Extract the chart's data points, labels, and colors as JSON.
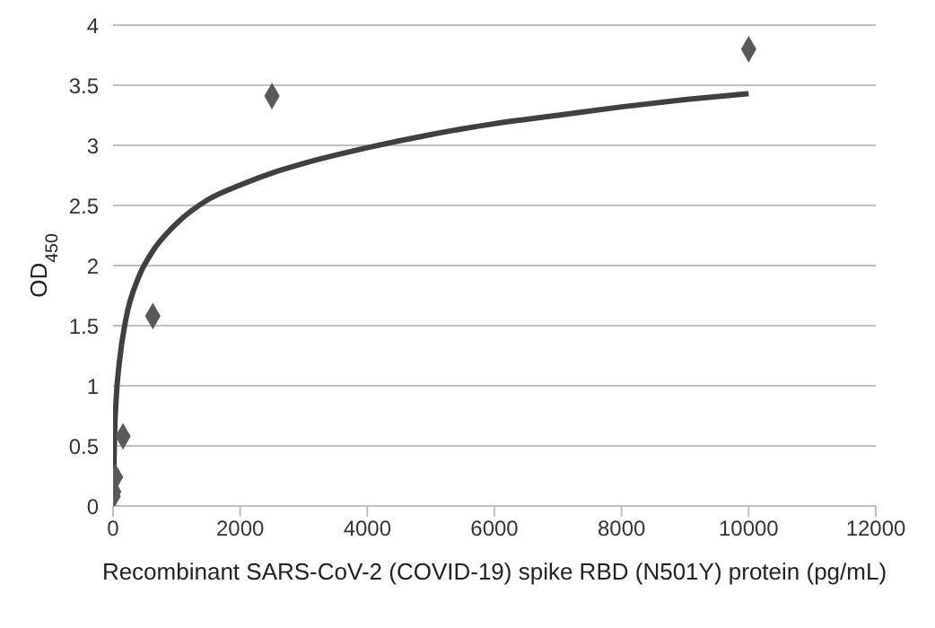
{
  "chart_data": {
    "type": "scatter",
    "xlabel": "Recombinant SARS-CoV-2 (COVID-19) spike RBD (N501Y) protein (pg/mL)",
    "ylabel": "OD$_{450}$",
    "series": [
      {
        "color": "#595959",
        "marker": "diamond",
        "x": [
          0,
          10,
          39,
          156,
          625,
          2500,
          10000
        ],
        "values": [
          0.08,
          0.12,
          0.24,
          0.58,
          1.58,
          3.41,
          3.8
        ]
      },
      {
        "type": "line",
        "color": "#404040",
        "marker": "none",
        "x": [
          5,
          20,
          50,
          100,
          200,
          400,
          600,
          1000,
          1500,
          2000,
          2500,
          3000,
          4000,
          5000,
          6000,
          7000,
          8000,
          9000,
          10000
        ],
        "values": [
          0,
          0.5,
          0.9,
          1.2,
          1.55,
          1.9,
          2.1,
          2.35,
          2.55,
          2.67,
          2.77,
          2.85,
          2.98,
          3.09,
          3.18,
          3.25,
          3.32,
          3.38,
          3.43
        ]
      }
    ],
    "xlim": [
      0,
      12000
    ],
    "xticks": [
      0,
      2000,
      4000,
      6000,
      8000,
      10000,
      12000
    ],
    "ylim": [
      0,
      4
    ],
    "yticks": [
      0,
      0.5,
      1,
      1.5,
      2,
      2.5,
      3,
      3.5,
      4
    ],
    "grid": "y"
  }
}
